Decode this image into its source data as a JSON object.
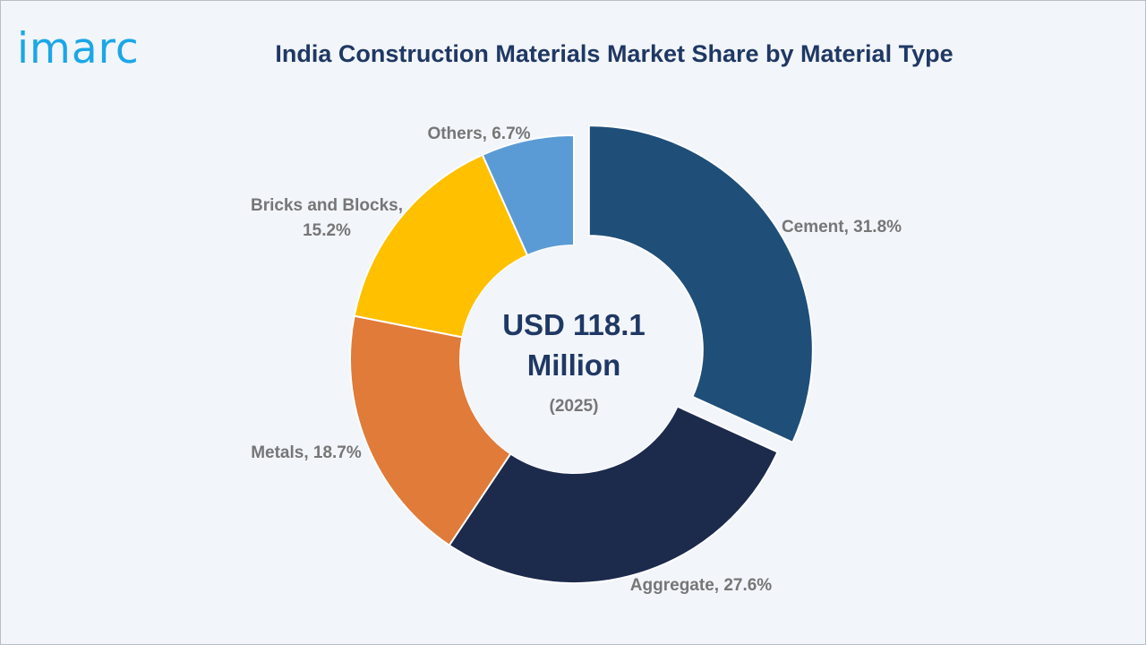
{
  "brand": {
    "logo_text": "imarc"
  },
  "chart_data": {
    "type": "pie",
    "title": "India Construction Materials Market Share by Material Type",
    "center_text": {
      "line1": "USD 118.1",
      "line2": "Million",
      "line3": "(2025)"
    },
    "slices": [
      {
        "name": "Cement",
        "value": 31.8,
        "label": "Cement, 31.8%",
        "color": "#1f4e79",
        "exploded": true
      },
      {
        "name": "Aggregate",
        "value": 27.6,
        "label": "Aggregate, 27.6%",
        "color": "#1c2a4c"
      },
      {
        "name": "Metals",
        "value": 18.7,
        "label": "Metals, 18.7%",
        "color": "#e07b39"
      },
      {
        "name": "Bricks and Blocks",
        "value": 15.2,
        "label_lines": [
          "Bricks and Blocks,",
          "15.2%"
        ],
        "color": "#ffc000"
      },
      {
        "name": "Others",
        "value": 6.7,
        "label": "Others, 6.7%",
        "color": "#5b9bd5"
      }
    ],
    "colors": {
      "title": "#1f3864",
      "logo": "#1aa7e8",
      "label": "#767676",
      "background": "#f2f5fa"
    }
  }
}
